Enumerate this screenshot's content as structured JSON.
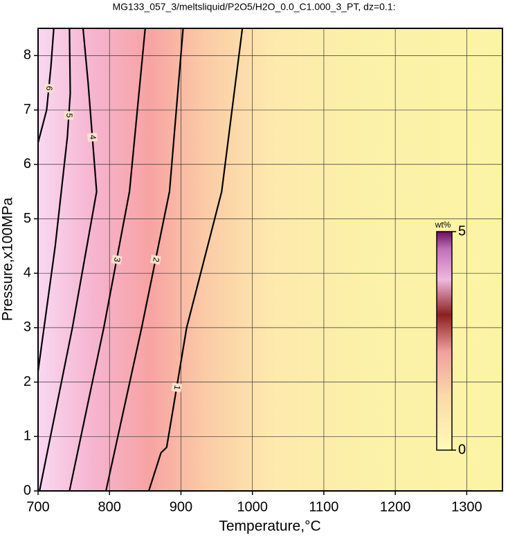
{
  "chart_data": {
    "type": "contour",
    "title": "MG133_057_3/meltsliquid/P2O5/H2O_0.0_C1.000_3_PT, dz=0.1:",
    "x_label": "Temperature,°C",
    "y_label": "Pressure,x100MPa",
    "xlim": [
      700,
      1350
    ],
    "ylim": [
      0,
      8.5
    ],
    "xticks": [
      700,
      800,
      900,
      1000,
      1100,
      1200,
      1300
    ],
    "yticks": [
      0,
      1,
      2,
      3,
      4,
      5,
      6,
      7,
      8
    ],
    "grid": true,
    "contours": [
      {
        "level": 1,
        "x": [
          855,
          872,
          880,
          908,
          957,
          986
        ],
        "y": [
          0,
          0.7,
          0.8,
          3,
          5.5,
          8.5
        ]
      },
      {
        "level": 2,
        "x": [
          795,
          845,
          884,
          903
        ],
        "y": [
          0,
          3,
          5.5,
          8.5
        ]
      },
      {
        "level": 3,
        "x": [
          744,
          792,
          828,
          850
        ],
        "y": [
          0,
          3,
          5.5,
          8.5
        ]
      },
      {
        "level": 4,
        "x": [
          702,
          748,
          782,
          770,
          763
        ],
        "y": [
          0,
          3,
          5.5,
          7.5,
          8.5
        ]
      },
      {
        "level": 5,
        "x": [
          700,
          724,
          741,
          745,
          744
        ],
        "y": [
          2.2,
          4.5,
          6.5,
          7.3,
          8.5
        ]
      },
      {
        "level": 6,
        "x": [
          700,
          712,
          718,
          722
        ],
        "y": [
          6.4,
          7.0,
          7.8,
          8.5
        ]
      }
    ],
    "colorbar": {
      "label": "wt%",
      "lim": [
        0,
        5
      ],
      "ticks": [
        0,
        5
      ]
    }
  }
}
